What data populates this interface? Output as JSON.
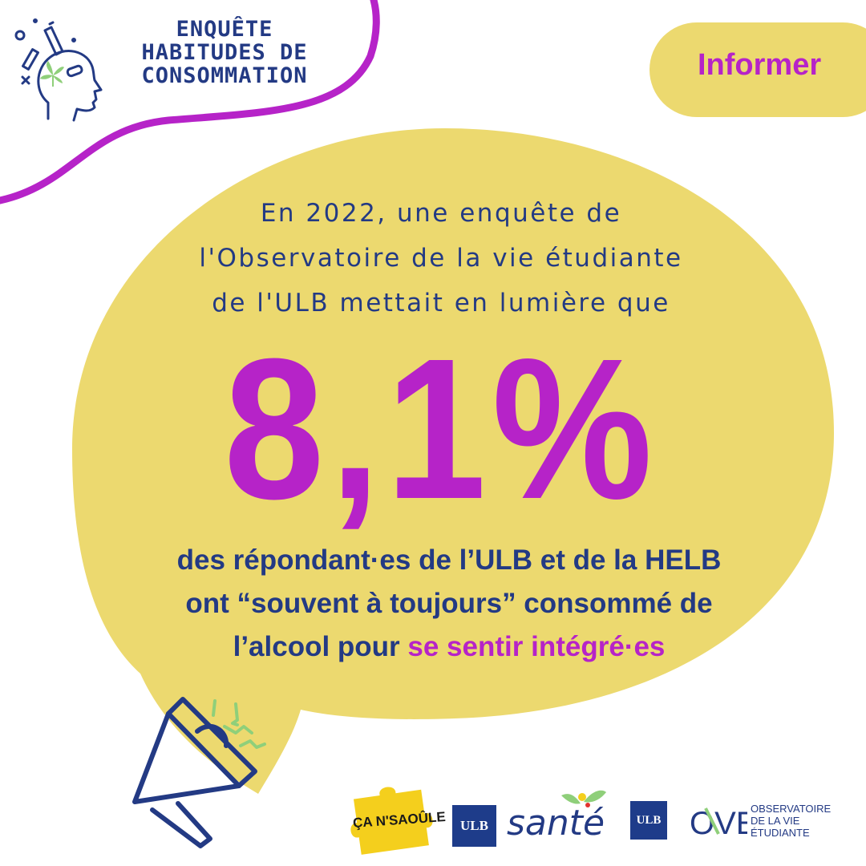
{
  "header": {
    "title_lines": [
      "ENQUÊTE",
      "HABITUDES DE",
      "CONSOMMATION"
    ],
    "head_icon": "head-with-substances-icon"
  },
  "tag": {
    "label": "Informer"
  },
  "bubble": {
    "intro_lines": [
      "En 2022, une enquête de",
      "l'Observatoire de la vie étudiante",
      "de l'ULB mettait en lumière que"
    ],
    "statistic": "8,1%",
    "conclusion": {
      "line1": "des répondant·es de l’ULB et de la HELB",
      "line2": "ont “souvent à toujours” consommé de",
      "line3_plain": "l’alcool pour ",
      "line3_accent": "se sentir intégré·es"
    }
  },
  "decoration": {
    "megaphone_icon": "megaphone-icon"
  },
  "logos": {
    "can_sabeule": "ÇA N'SAOÛLE",
    "ulb_1": "ULB",
    "sante": "santé",
    "ulb_2": "ULB",
    "ove_mark": "OVE",
    "ove_lines": [
      "OBSERVATOIRE",
      "DE LA VIE",
      "ÉTUDIANTE"
    ]
  },
  "colors": {
    "navy": "#233a84",
    "purple": "#b623c8",
    "yellow": "#ecd96f",
    "green": "#8fcf7a",
    "puzzle": "#f4cf1d"
  }
}
